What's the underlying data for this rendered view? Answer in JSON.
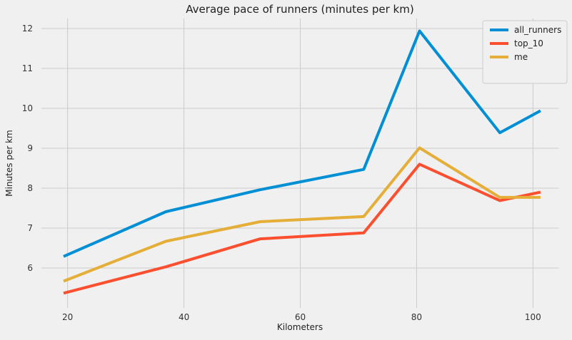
{
  "chart_data": {
    "type": "line",
    "title": "Average pace of runners (minutes per km)",
    "xlabel": "Kilometers",
    "ylabel": "Minutes per km",
    "xlim": [
      15.5,
      104.5
    ],
    "ylim": [
      5.0,
      12.25
    ],
    "xticks": [
      20,
      40,
      60,
      80,
      100
    ],
    "yticks": [
      6,
      7,
      8,
      9,
      10,
      11,
      12
    ],
    "grid": true,
    "legend_position": "top-right",
    "x": [
      19.3,
      36.9,
      53.1,
      70.9,
      80.5,
      94.3,
      101.3
    ],
    "series": [
      {
        "name": "all_runners",
        "color": "#008fd5",
        "values": [
          6.29,
          7.41,
          7.96,
          8.47,
          11.94,
          9.39,
          9.94
        ]
      },
      {
        "name": "top_10",
        "color": "#fc4f30",
        "values": [
          5.37,
          6.03,
          6.73,
          6.88,
          8.6,
          7.69,
          7.9
        ]
      },
      {
        "name": "me",
        "color": "#e5ae38",
        "values": [
          5.67,
          6.67,
          7.16,
          7.29,
          9.01,
          7.77,
          7.77
        ]
      }
    ]
  }
}
